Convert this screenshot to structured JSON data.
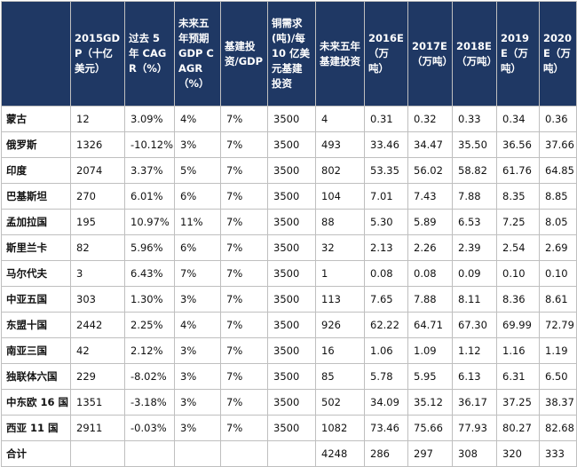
{
  "header": {
    "blank": "",
    "columns": [
      "2015GDP（十亿美元）",
      "过去 5 年 CAGR（%）",
      "未来五年预期 GDP CAGR（%）",
      "基建投资/GDP",
      "铜需求(吨)/每 10 亿美元基建投资",
      "未来五年基建投资",
      "2016E（万吨）",
      "2017E（万吨）",
      "2018E（万吨）",
      "2019E（万吨）",
      "2020E（万吨）"
    ]
  },
  "rows": [
    [
      "蒙古",
      "12",
      "3.09%",
      "4%",
      "7%",
      "3500",
      "4",
      "0.31",
      "0.32",
      "0.33",
      "0.34",
      "0.36"
    ],
    [
      "俄罗斯",
      "1326",
      "-10.12%",
      "3%",
      "7%",
      "3500",
      "493",
      "33.46",
      "34.47",
      "35.50",
      "36.56",
      "37.66"
    ],
    [
      "印度",
      "2074",
      "3.37%",
      "5%",
      "7%",
      "3500",
      "802",
      "53.35",
      "56.02",
      "58.82",
      "61.76",
      "64.85"
    ],
    [
      "巴基斯坦",
      "270",
      "6.01%",
      "6%",
      "7%",
      "3500",
      "104",
      "7.01",
      "7.43",
      "7.88",
      "8.35",
      "8.85"
    ],
    [
      "孟加拉国",
      "195",
      "10.97%",
      "11%",
      "7%",
      "3500",
      "88",
      "5.30",
      "5.89",
      "6.53",
      "7.25",
      "8.05"
    ],
    [
      "斯里兰卡",
      "82",
      "5.96%",
      "6%",
      "7%",
      "3500",
      "32",
      "2.13",
      "2.26",
      "2.39",
      "2.54",
      "2.69"
    ],
    [
      "马尔代夫",
      "3",
      "6.43%",
      "7%",
      "7%",
      "3500",
      "1",
      "0.08",
      "0.08",
      "0.09",
      "0.10",
      "0.10"
    ],
    [
      "中亚五国",
      "303",
      "1.30%",
      "3%",
      "7%",
      "3500",
      "113",
      "7.65",
      "7.88",
      "8.11",
      "8.36",
      "8.61"
    ],
    [
      "东盟十国",
      "2442",
      "2.25%",
      "4%",
      "7%",
      "3500",
      "926",
      "62.22",
      "64.71",
      "67.30",
      "69.99",
      "72.79"
    ],
    [
      "南亚三国",
      "42",
      "2.12%",
      "3%",
      "7%",
      "3500",
      "16",
      "1.06",
      "1.09",
      "1.12",
      "1.16",
      "1.19"
    ],
    [
      "独联体六国",
      "229",
      "-8.02%",
      "3%",
      "7%",
      "3500",
      "85",
      "5.78",
      "5.95",
      "6.13",
      "6.31",
      "6.50"
    ],
    [
      "中东欧 16 国",
      "1351",
      "-3.18%",
      "3%",
      "7%",
      "3500",
      "502",
      "34.09",
      "35.12",
      "36.17",
      "37.25",
      "38.37"
    ],
    [
      "西亚 11 国",
      "2911",
      "-0.03%",
      "3%",
      "7%",
      "3500",
      "1082",
      "73.46",
      "75.66",
      "77.93",
      "80.27",
      "82.68"
    ],
    [
      "合计",
      "",
      "",
      "",
      "",
      "",
      "4248",
      "286",
      "297",
      "308",
      "320",
      "333"
    ]
  ]
}
